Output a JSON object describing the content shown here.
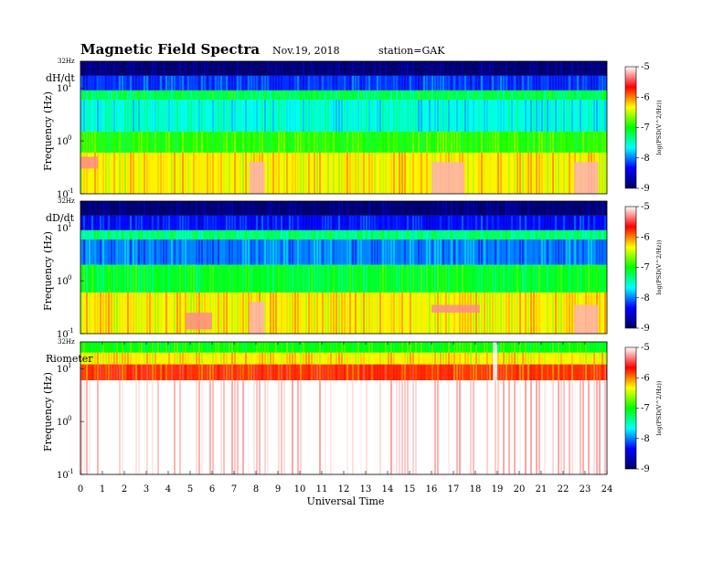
{
  "header": {
    "title": "Magnetic Field Spectra",
    "date": "Nov.19, 2018",
    "station": "station=GAK"
  },
  "chart_data": {
    "type": "heatmap",
    "xlabel": "Universal Time",
    "xlim": [
      0,
      24
    ],
    "x_ticks": [
      "0",
      "1",
      "2",
      "3",
      "4",
      "5",
      "6",
      "7",
      "8",
      "9",
      "10",
      "11",
      "12",
      "13",
      "14",
      "15",
      "16",
      "17",
      "18",
      "19",
      "20",
      "21",
      "22",
      "23",
      "24"
    ],
    "ylabel": "Frequency (Hz)",
    "y_scale": "log",
    "ylim": [
      0.1,
      32
    ],
    "y_top_label": "32Hz",
    "y_ticks": [
      {
        "value": 10,
        "base": "10",
        "exp": "1"
      },
      {
        "value": 1,
        "base": "10",
        "exp": "0"
      },
      {
        "value": 0.1,
        "base": "10",
        "exp": "-1"
      }
    ],
    "colorbar": {
      "label": "log(PSD(V^2/Hz))",
      "range": [
        -9,
        -5
      ],
      "ticks": [
        "-5",
        "-6",
        "-7",
        "-8",
        "-9"
      ],
      "colors": [
        "#ffffff",
        "#ff0000",
        "#ffff00",
        "#00ff00",
        "#00ffff",
        "#0000ff",
        "#000060"
      ]
    },
    "panels": [
      {
        "label": "dH/dt",
        "bands": [
          {
            "f_min": 17,
            "f_max": 32,
            "level": -8.9
          },
          {
            "f_min": 9,
            "f_max": 17,
            "level": -8.2
          },
          {
            "f_min": 6,
            "f_max": 9,
            "level": -7.2
          },
          {
            "f_min": 1.5,
            "f_max": 6,
            "level": -7.6
          },
          {
            "f_min": 0.6,
            "f_max": 1.5,
            "level": -6.9
          },
          {
            "f_min": 0.1,
            "f_max": 0.6,
            "level": -6.3
          }
        ],
        "events": [
          {
            "t_start": 7.7,
            "t_end": 8.4,
            "f_min": 0.1,
            "f_max": 0.4,
            "level": -5.2
          },
          {
            "t_start": 16.0,
            "t_end": 17.5,
            "f_min": 0.1,
            "f_max": 0.4,
            "level": -5.2
          },
          {
            "t_start": 22.5,
            "t_end": 23.6,
            "f_min": 0.1,
            "f_max": 0.4,
            "level": -5.2
          },
          {
            "t_start": 0.0,
            "t_end": 0.8,
            "f_min": 0.3,
            "f_max": 0.5,
            "level": -5.3
          }
        ]
      },
      {
        "label": "dD/dt",
        "bands": [
          {
            "f_min": 17,
            "f_max": 32,
            "level": -8.9
          },
          {
            "f_min": 9,
            "f_max": 17,
            "level": -8.3
          },
          {
            "f_min": 6,
            "f_max": 9,
            "level": -7.3
          },
          {
            "f_min": 2,
            "f_max": 6,
            "level": -8.0
          },
          {
            "f_min": 0.6,
            "f_max": 2,
            "level": -7.1
          },
          {
            "f_min": 0.1,
            "f_max": 0.6,
            "level": -6.3
          }
        ],
        "events": [
          {
            "t_start": 7.7,
            "t_end": 8.4,
            "f_min": 0.1,
            "f_max": 0.4,
            "level": -5.2
          },
          {
            "t_start": 4.8,
            "t_end": 6.0,
            "f_min": 0.12,
            "f_max": 0.25,
            "level": -5.3
          },
          {
            "t_start": 16.0,
            "t_end": 18.2,
            "f_min": 0.25,
            "f_max": 0.35,
            "level": -5.3
          },
          {
            "t_start": 22.5,
            "t_end": 23.6,
            "f_min": 0.1,
            "f_max": 0.35,
            "level": -5.2
          }
        ]
      },
      {
        "label": "Riometer",
        "bands": [
          {
            "f_min": 20,
            "f_max": 32,
            "level": -7.0
          },
          {
            "f_min": 12,
            "f_max": 20,
            "level": -6.3
          },
          {
            "f_min": 6,
            "f_max": 12,
            "level": -5.8
          },
          {
            "f_min": 0.1,
            "f_max": 6,
            "level": -5.0
          }
        ],
        "events": [
          {
            "t_start": 18.8,
            "t_end": 19.0,
            "f_min": 6,
            "f_max": 32,
            "level": -5.0
          }
        ]
      }
    ]
  }
}
